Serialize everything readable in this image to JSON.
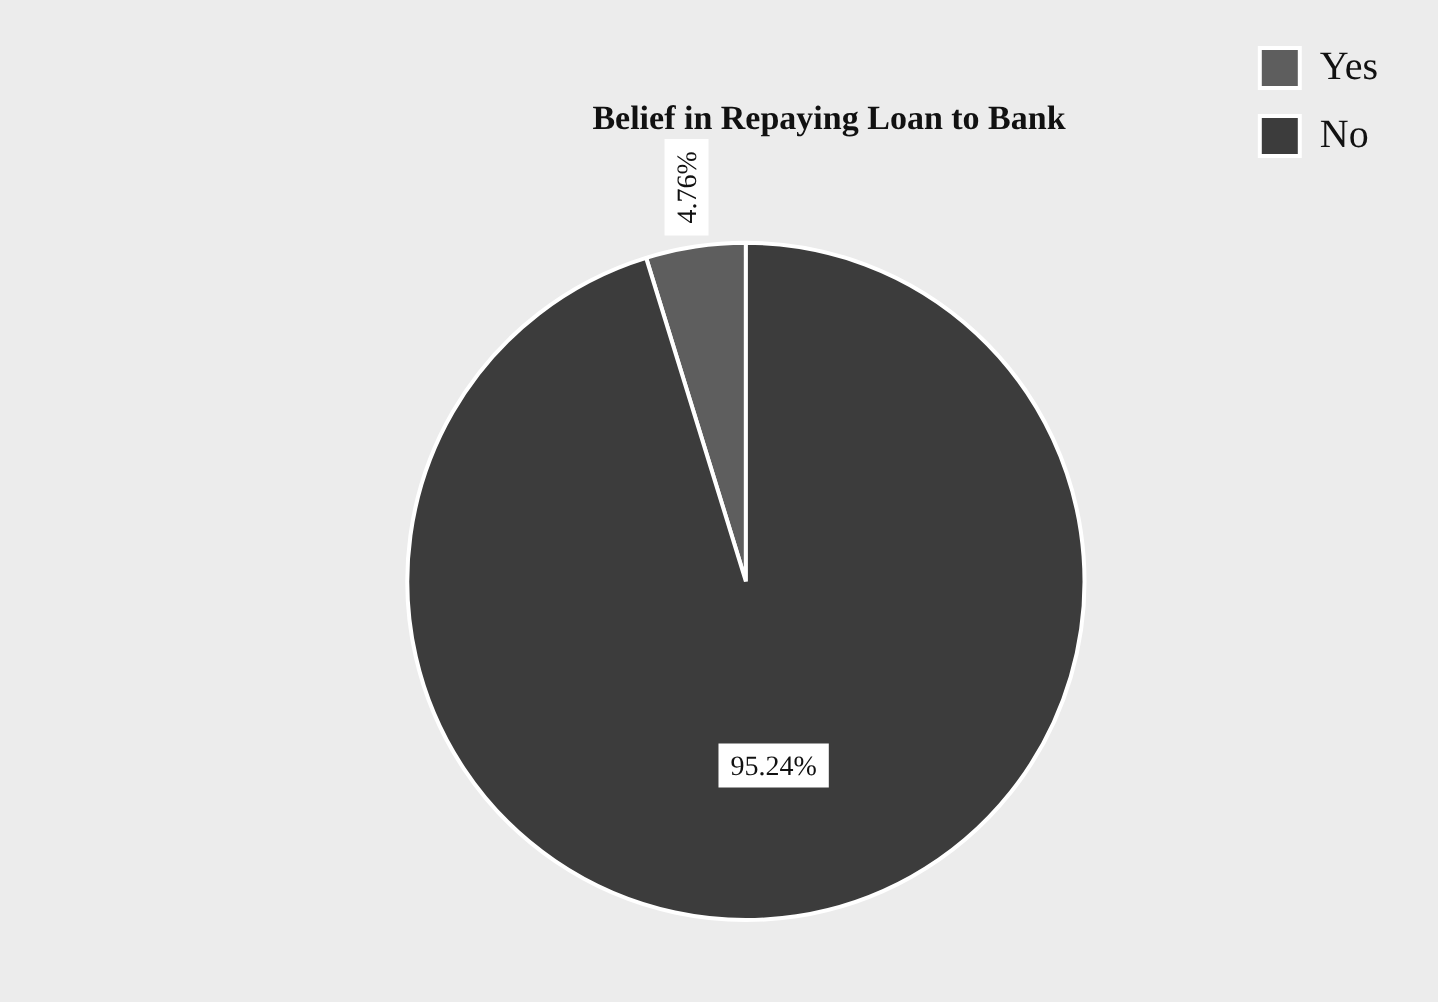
{
  "chart_data": {
    "type": "pie",
    "title": "Belief in Repaying Loan to Bank",
    "categories": [
      "Yes",
      "No"
    ],
    "values": [
      4.76,
      95.24
    ],
    "colors": [
      "#5e5e5e",
      "#3c3c3c"
    ],
    "value_labels": [
      "4.76%",
      "95.24%"
    ],
    "legend": "top right"
  }
}
